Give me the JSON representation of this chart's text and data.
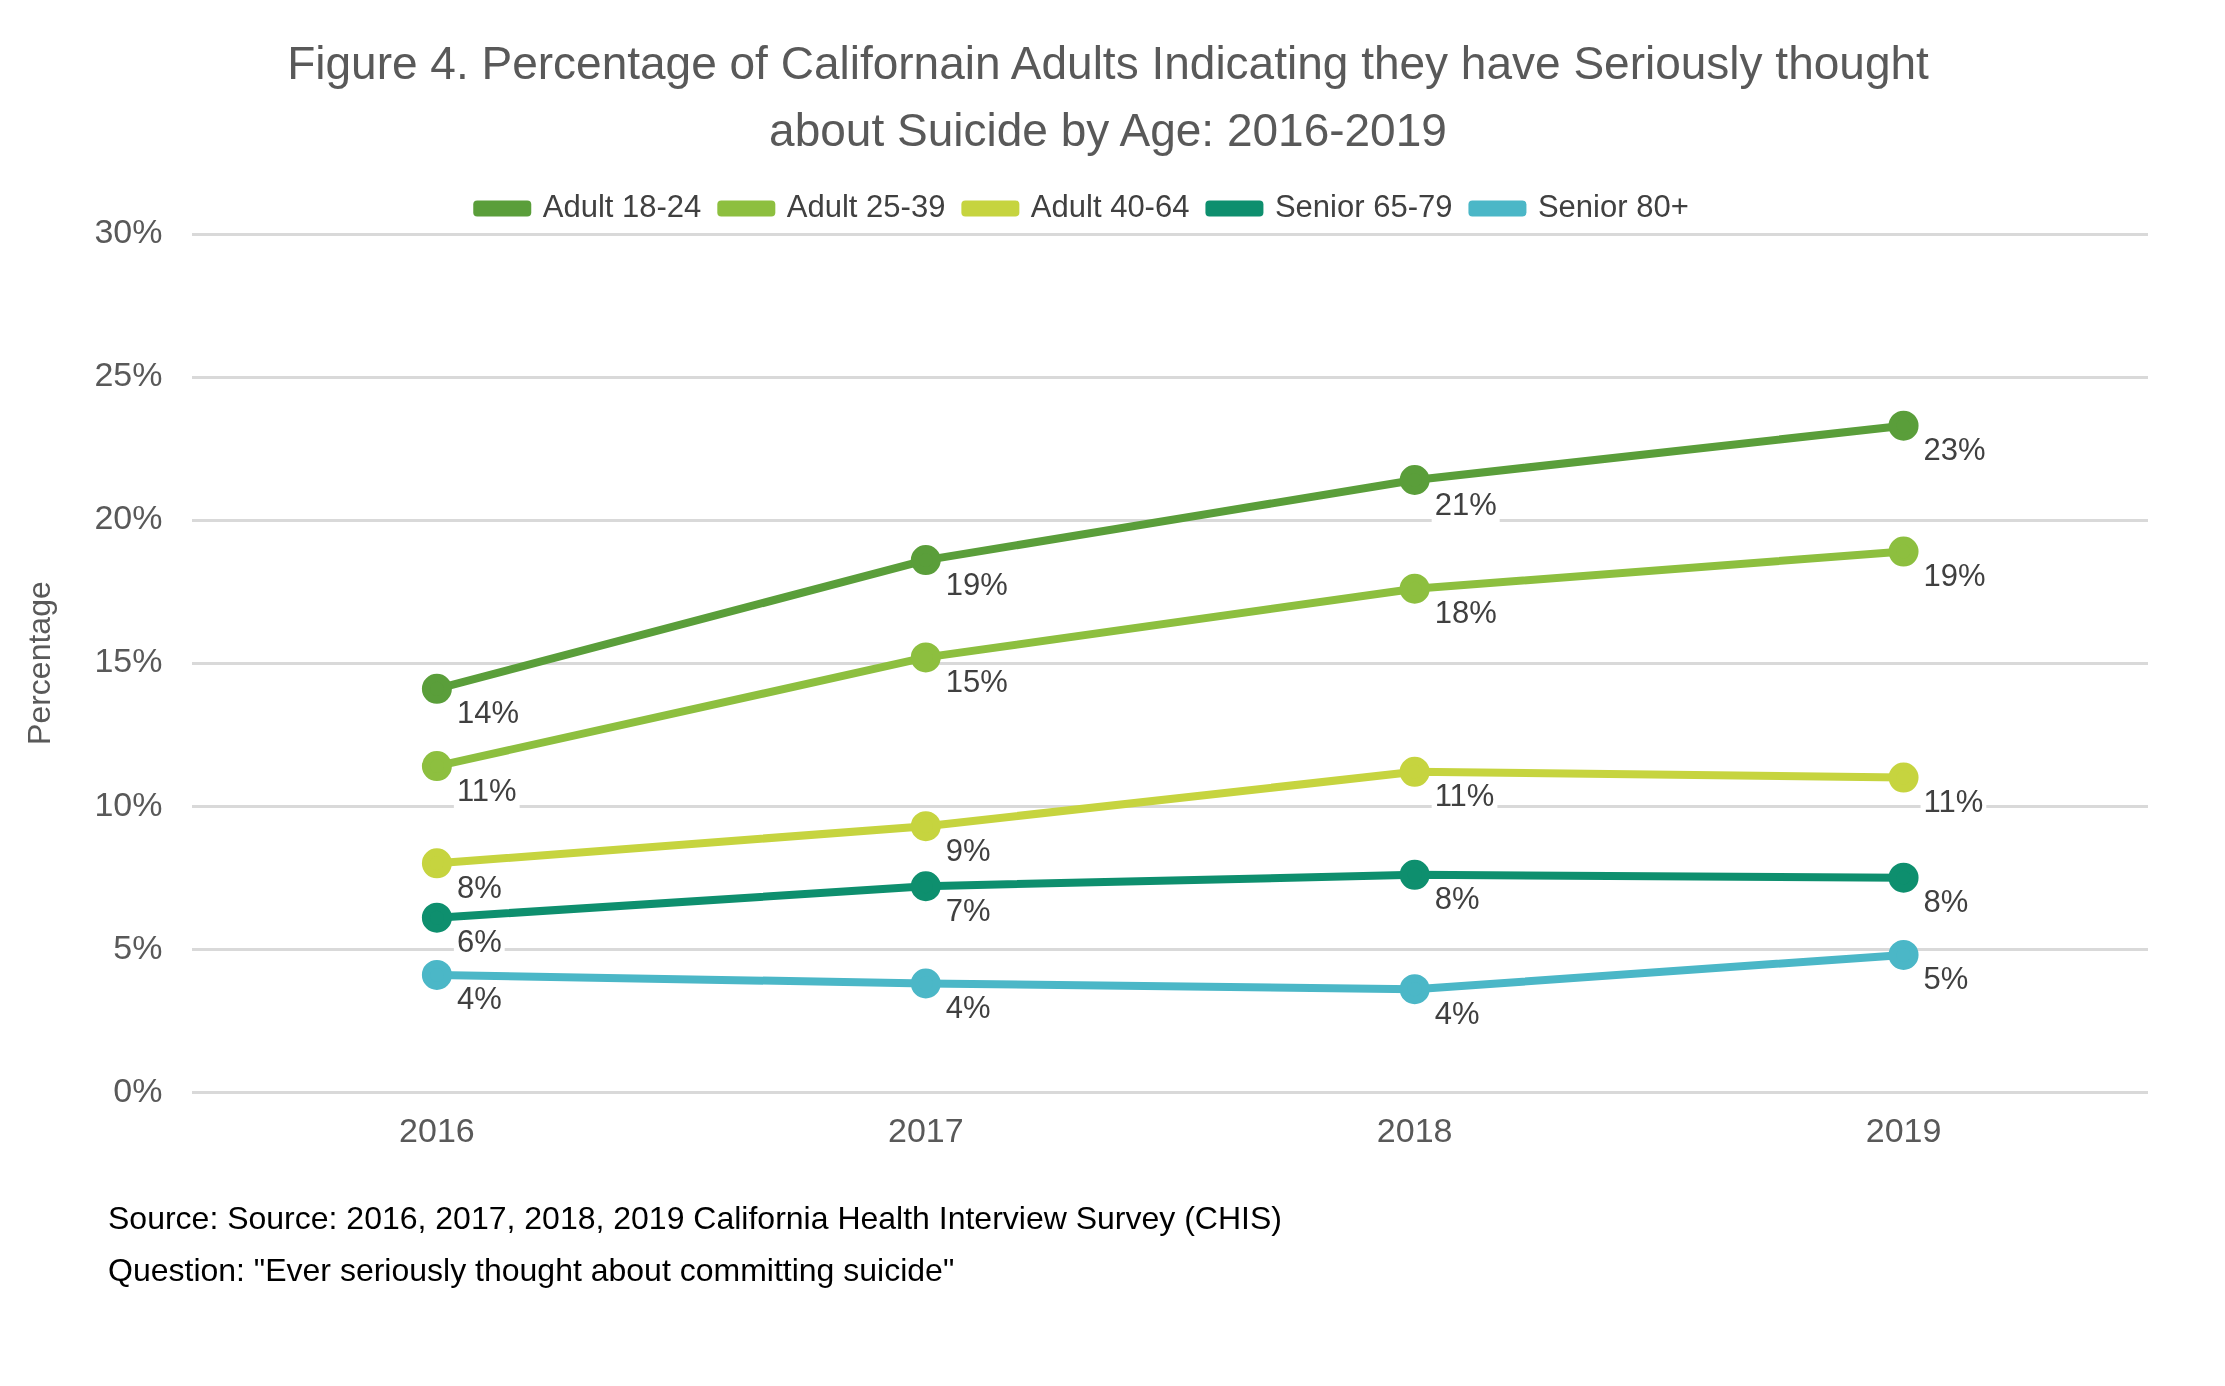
{
  "chart_data": {
    "type": "line",
    "title": "Figure 4. Percentage of Californain Adults Indicating they have Seriously thought about Suicide by Age: 2016-2019",
    "ylabel": "Percentage",
    "categories": [
      "2016",
      "2017",
      "2018",
      "2019"
    ],
    "series": [
      {
        "name": "Adult 18-24",
        "color": "#5a9e3a",
        "values": [
          14.1,
          18.6,
          21.4,
          23.3
        ],
        "value_labels": [
          "14%",
          "19%",
          "21%",
          "23%"
        ]
      },
      {
        "name": "Adult 25-39",
        "color": "#8dbf3f",
        "values": [
          11.4,
          15.2,
          17.6,
          18.9
        ],
        "value_labels": [
          "11%",
          "15%",
          "18%",
          "19%"
        ]
      },
      {
        "name": "Adult 40-64",
        "color": "#c6d43f",
        "values": [
          8.0,
          9.3,
          11.2,
          11.0
        ],
        "value_labels": [
          "8%",
          "9%",
          "11%",
          "11%"
        ]
      },
      {
        "name": "Senior 65-79",
        "color": "#0e8f6e",
        "values": [
          6.1,
          7.2,
          7.6,
          7.5
        ],
        "value_labels": [
          "6%",
          "7%",
          "8%",
          "8%"
        ]
      },
      {
        "name": "Senior 80+",
        "color": "#4bb7c7",
        "values": [
          4.1,
          3.8,
          3.6,
          4.8
        ],
        "value_labels": [
          "4%",
          "4%",
          "4%",
          "5%"
        ]
      }
    ],
    "ylim": [
      0,
      30
    ],
    "yticks": [
      {
        "value": 0,
        "label": "0%"
      },
      {
        "value": 5,
        "label": "5%"
      },
      {
        "value": 10,
        "label": "10%"
      },
      {
        "value": 15,
        "label": "15%"
      },
      {
        "value": 20,
        "label": "20%"
      },
      {
        "value": 25,
        "label": "25%"
      },
      {
        "value": 30,
        "label": "30%"
      }
    ],
    "grid": "y",
    "legend": "top",
    "marker": "circle",
    "line_style": "solid",
    "annotations": [
      "Source: Source: 2016, 2017, 2018, 2019 California Health Interview Survey (CHIS)",
      "Question: \"Ever seriously thought about committing suicide\""
    ]
  }
}
